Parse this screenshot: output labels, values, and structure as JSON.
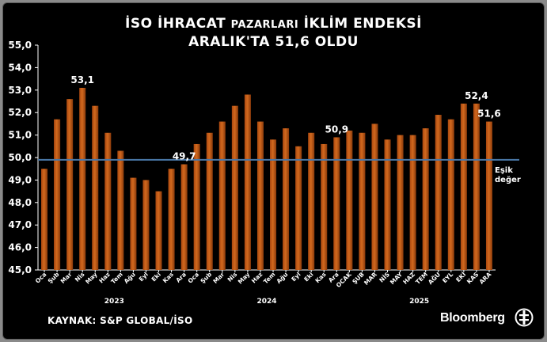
{
  "chart_data": {
    "type": "bar",
    "title_line1_a": "İSO İHRACAT ",
    "title_line1_b": "PAZARLARI",
    "title_line1_c": " İKLİM ENDEKSİ",
    "title_line2": "ARALIK'TA 51,6 OLDU",
    "categories": [
      "Oca",
      "Şub",
      "Mar",
      "Nis",
      "May",
      "Haz",
      "Tem",
      "Ağu",
      "Eyl",
      "Eki",
      "Kas",
      "Ara",
      "Oca",
      "Şub",
      "Mar",
      "Nis",
      "May",
      "Haz",
      "Tem",
      "Ağu",
      "Eyl",
      "Eki",
      "Kas",
      "Ara",
      "OCAK",
      "ŞUB",
      "MAR",
      "NİS",
      "MAY",
      "HAZ",
      "TEM",
      "AĞU",
      "EYL",
      "EKİ",
      "KAS",
      "ARA"
    ],
    "years": [
      "2023",
      "2024",
      "2025"
    ],
    "values": [
      49.5,
      51.7,
      52.6,
      53.1,
      52.3,
      51.1,
      50.3,
      49.1,
      49.0,
      48.5,
      49.5,
      49.7,
      50.6,
      51.1,
      51.6,
      52.3,
      52.8,
      51.6,
      50.8,
      51.3,
      50.5,
      51.1,
      50.6,
      50.9,
      51.2,
      51.1,
      51.5,
      50.8,
      51.0,
      51.0,
      51.3,
      51.9,
      51.7,
      52.4,
      52.4,
      51.6
    ],
    "ylim": [
      45,
      55
    ],
    "yticks": [
      "45,0",
      "46,0",
      "47,0",
      "48,0",
      "49,0",
      "50,0",
      "51,0",
      "52,0",
      "53,0",
      "54,0",
      "55,0"
    ],
    "threshold": 49.9,
    "threshold_label": [
      "Eşik",
      "değer"
    ],
    "annotations": [
      {
        "index": 3,
        "text": "53,1"
      },
      {
        "index": 11,
        "text": "49,7"
      },
      {
        "index": 23,
        "text": "50,9"
      },
      {
        "index": 34,
        "text": "52,4"
      },
      {
        "index": 35,
        "text": "51,6"
      }
    ],
    "bar_color": "#d2691e",
    "threshold_color": "#4a78a8",
    "grid": false
  },
  "footer": {
    "source": "KAYNAK: S&P GLOBAL/İSO",
    "brand": "Bloomberg"
  }
}
